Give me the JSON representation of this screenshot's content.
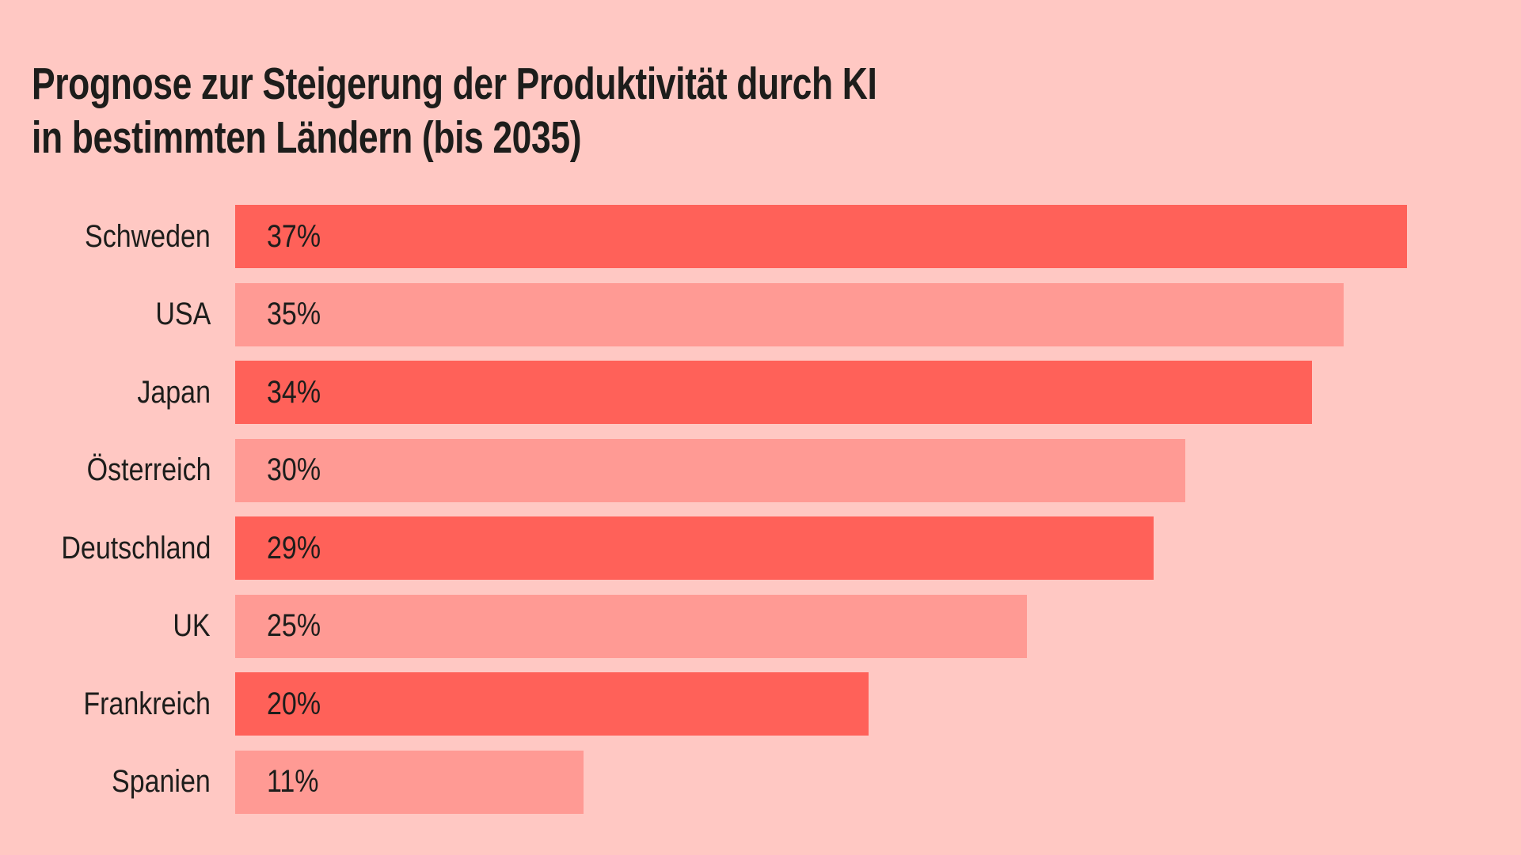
{
  "title": {
    "line1": "Prognose zur Steigerung der Produktivität durch KI",
    "line2": "in bestimmten Ländern (bis 2035)"
  },
  "colors": {
    "background": "#ffc8c3",
    "bar_dark": "#ff6159",
    "bar_light": "#ff9a94",
    "text": "#1d1d1b"
  },
  "chart_data": {
    "type": "bar",
    "orientation": "horizontal",
    "title": "Prognose zur Steigerung der Produktivität durch KI in bestimmten Ländern (bis 2035)",
    "categories": [
      "Schweden",
      "USA",
      "Japan",
      "Österreich",
      "Deutschland",
      "UK",
      "Frankreich",
      "Spanien"
    ],
    "values": [
      37,
      35,
      34,
      30,
      29,
      25,
      20,
      11
    ],
    "value_labels": [
      "37%",
      "35%",
      "34%",
      "30%",
      "29%",
      "25%",
      "20%",
      "11%"
    ],
    "unit": "%",
    "xlim": [
      0,
      40.6
    ],
    "bar_shades": [
      "dark",
      "light",
      "dark",
      "light",
      "dark",
      "light",
      "dark",
      "light"
    ],
    "axes_visible": false,
    "gridlines": false,
    "legend": "none",
    "data_labels_position": "inside-start"
  }
}
